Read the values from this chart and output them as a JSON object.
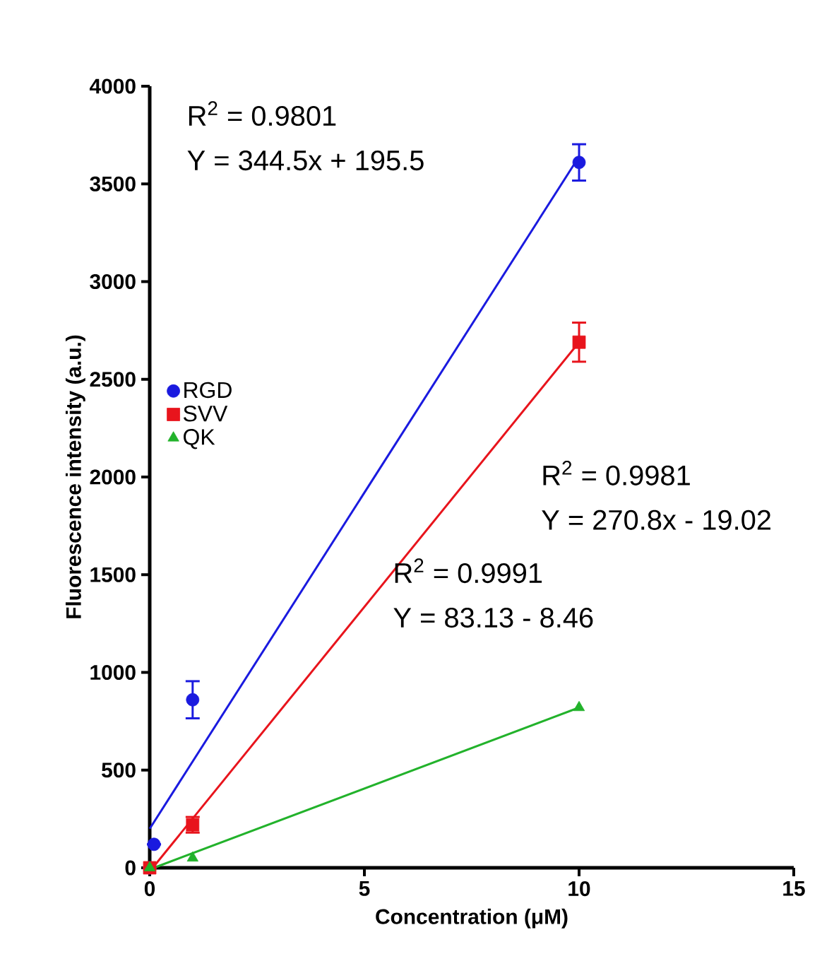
{
  "chart_data": {
    "type": "scatter",
    "xlabel": "Concentration (μM)",
    "ylabel": "Fluorescence intensity (a.u.)",
    "xlim": [
      0,
      15
    ],
    "xticks": [
      0,
      5,
      10,
      15
    ],
    "ylim": [
      0,
      4000
    ],
    "yticks": [
      0,
      500,
      1000,
      1500,
      2000,
      2500,
      3000,
      3500,
      4000
    ],
    "grid": false,
    "legend": "left",
    "series": [
      {
        "name": "RGD",
        "color": "#1a1adf",
        "marker": "circle",
        "x": [
          0,
          0.1,
          1,
          10
        ],
        "values": [
          0,
          120,
          860,
          3610
        ],
        "errors": [
          null,
          null,
          95,
          93
        ]
      },
      {
        "name": "SVV",
        "color": "#e8141c",
        "marker": "square",
        "x": [
          0,
          1,
          10
        ],
        "values": [
          0,
          220,
          2690
        ],
        "errors": [
          null,
          40,
          100
        ]
      },
      {
        "name": "QK",
        "color": "#22b22b",
        "marker": "triangle",
        "x": [
          0,
          1,
          10
        ],
        "values": [
          0,
          50,
          820
        ]
      },
      {
        "type": "line",
        "color": "#1a1adf",
        "x": [
          0,
          10
        ],
        "values": [
          200,
          3640
        ]
      },
      {
        "type": "line",
        "color": "#e8141c",
        "x": [
          0.07,
          10
        ],
        "values": [
          0,
          2690
        ]
      },
      {
        "type": "line",
        "color": "#22b22b",
        "x": [
          0.1,
          10
        ],
        "values": [
          0,
          820
        ]
      }
    ],
    "annotations": [
      "R$^{2}$ = 0.9801",
      "Y = 344.5x + 195.5",
      "R$^{2}$ = 0.9981",
      "Y = 270.8x - 19.02",
      "R$^{2}$ = 0.9991",
      "Y = 83.13 - 8.46"
    ]
  }
}
